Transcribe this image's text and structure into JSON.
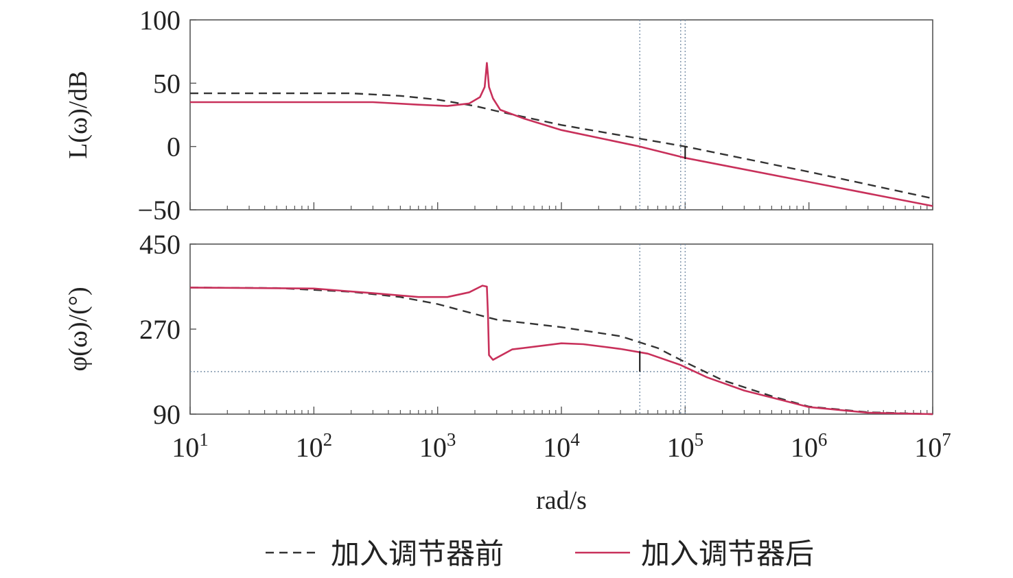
{
  "chart_data": [
    {
      "type": "line",
      "panel": "magnitude",
      "ylabel": "L(ω)/dB",
      "xlabel": "",
      "xscale": "log",
      "xlim": [
        10,
        10000000
      ],
      "ylim": [
        -50,
        100
      ],
      "yticks": [
        100,
        50,
        0,
        -50
      ],
      "ytick_labels": [
        "100",
        "50",
        "0",
        "−50"
      ],
      "grid": false,
      "series": [
        {
          "name": "加入调节器前",
          "color": "#333333",
          "style": "dashed",
          "points": [
            [
              10,
              42
            ],
            [
              100,
              42
            ],
            [
              200,
              42
            ],
            [
              500,
              40
            ],
            [
              1000,
              37
            ],
            [
              2000,
              32
            ],
            [
              3000,
              28
            ],
            [
              10000,
              17
            ],
            [
              100000,
              0
            ],
            [
              1000000,
              -20
            ],
            [
              3000000,
              -30
            ],
            [
              10000000,
              -41
            ]
          ]
        },
        {
          "name": "加入调节器后",
          "color": "#c8305a",
          "style": "solid",
          "points": [
            [
              10,
              35
            ],
            [
              100,
              35
            ],
            [
              300,
              35
            ],
            [
              700,
              33
            ],
            [
              1200,
              32
            ],
            [
              1800,
              34
            ],
            [
              2200,
              39
            ],
            [
              2400,
              47
            ],
            [
              2500,
              66
            ],
            [
              2600,
              47
            ],
            [
              2800,
              38
            ],
            [
              3200,
              29
            ],
            [
              5000,
              22
            ],
            [
              10000,
              13
            ],
            [
              43000,
              0
            ],
            [
              100000,
              -9
            ],
            [
              1000000,
              -28
            ],
            [
              10000000,
              -47
            ]
          ]
        }
      ],
      "reference_lines": [
        {
          "orientation": "vertical",
          "x": 43000
        },
        {
          "orientation": "vertical",
          "x": 92000
        },
        {
          "orientation": "vertical",
          "x": 100000
        }
      ],
      "markers": [
        {
          "x": 100000,
          "y_from": 0,
          "y_to": -10
        }
      ]
    },
    {
      "type": "line",
      "panel": "phase",
      "ylabel": "φ(ω)/(°)",
      "xlabel": "rad/s",
      "xscale": "log",
      "xlim": [
        10,
        10000000
      ],
      "ylim": [
        90,
        450
      ],
      "yticks": [
        450,
        270,
        90
      ],
      "ytick_labels": [
        "450",
        "270",
        "90"
      ],
      "xticks": [
        10,
        100,
        1000,
        10000,
        100000,
        1000000,
        10000000
      ],
      "xtick_labels": [
        {
          "base": "10",
          "exp": "1"
        },
        {
          "base": "10",
          "exp": "2"
        },
        {
          "base": "10",
          "exp": "3"
        },
        {
          "base": "10",
          "exp": "4"
        },
        {
          "base": "10",
          "exp": "5"
        },
        {
          "base": "10",
          "exp": "6"
        },
        {
          "base": "10",
          "exp": "7"
        }
      ],
      "grid": false,
      "series": [
        {
          "name": "加入调节器前",
          "color": "#333333",
          "style": "dashed",
          "points": [
            [
              10,
              358
            ],
            [
              50,
              357
            ],
            [
              100,
              353
            ],
            [
              200,
              349
            ],
            [
              500,
              338
            ],
            [
              1000,
              323
            ],
            [
              2000,
              302
            ],
            [
              3000,
              290
            ],
            [
              10000,
              274
            ],
            [
              30000,
              255
            ],
            [
              60000,
              230
            ],
            [
              100000,
              200
            ],
            [
              200000,
              162
            ],
            [
              500000,
              128
            ],
            [
              1000000,
              106
            ],
            [
              3000000,
              94
            ],
            [
              10000000,
              90
            ]
          ]
        },
        {
          "name": "加入调节器后",
          "color": "#c8305a",
          "style": "solid",
          "points": [
            [
              10,
              358
            ],
            [
              100,
              356
            ],
            [
              300,
              346
            ],
            [
              700,
              338
            ],
            [
              1200,
              338
            ],
            [
              1800,
              348
            ],
            [
              2300,
              362
            ],
            [
              2500,
              360
            ],
            [
              2550,
              300
            ],
            [
              2600,
              215
            ],
            [
              2800,
              205
            ],
            [
              4000,
              227
            ],
            [
              10000,
              240
            ],
            [
              15000,
              238
            ],
            [
              30000,
              228
            ],
            [
              50000,
              218
            ],
            [
              92000,
              194
            ],
            [
              150000,
              168
            ],
            [
              300000,
              140
            ],
            [
              1000000,
              105
            ],
            [
              3000000,
              93
            ],
            [
              10000000,
              90
            ]
          ]
        }
      ],
      "reference_lines": [
        {
          "orientation": "horizontal",
          "y": 180
        },
        {
          "orientation": "vertical",
          "x": 43000
        },
        {
          "orientation": "vertical",
          "x": 92000
        },
        {
          "orientation": "vertical",
          "x": 100000
        }
      ],
      "markers": [
        {
          "x": 43000,
          "y_from": 180,
          "y_to": 223
        }
      ]
    }
  ],
  "legend": {
    "position": "bottom",
    "items": [
      {
        "label": "加入调节器前",
        "color": "#333333",
        "style": "dashed"
      },
      {
        "label": "加入调节器后",
        "color": "#c8305a",
        "style": "solid"
      }
    ]
  }
}
